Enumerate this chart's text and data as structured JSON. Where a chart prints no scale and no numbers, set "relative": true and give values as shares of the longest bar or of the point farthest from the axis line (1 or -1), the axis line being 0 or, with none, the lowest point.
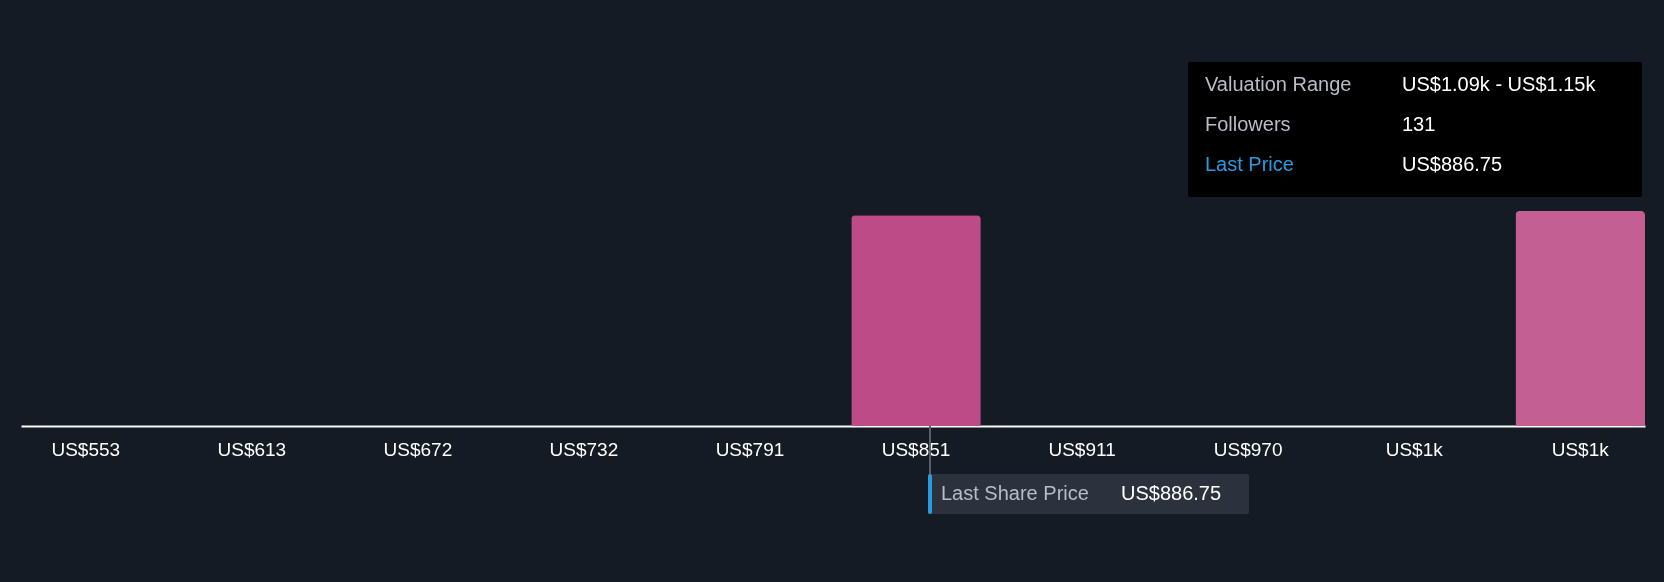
{
  "chart_data": {
    "type": "bar",
    "relative": true,
    "categories": [
      "US$553",
      "US$613",
      "US$672",
      "US$732",
      "US$791",
      "US$851",
      "US$911",
      "US$970",
      "US$1k",
      "US$1k"
    ],
    "values": [
      0,
      0,
      0,
      0,
      0,
      0.98,
      0,
      0,
      0,
      1
    ],
    "colors": [
      "#bc4b87",
      "#bc4b87",
      "#bc4b87",
      "#bc4b87",
      "#bc4b87",
      "#bc4b87",
      "#bc4b87",
      "#bc4b87",
      "#bc4b87",
      "#c45f94"
    ],
    "annotations": [
      "Valuation Range",
      "US$1.09k - US$1.15k",
      "Followers",
      "131",
      "Last Price",
      "US$886.75",
      "Last Share Price",
      "US$886.75"
    ]
  }
}
